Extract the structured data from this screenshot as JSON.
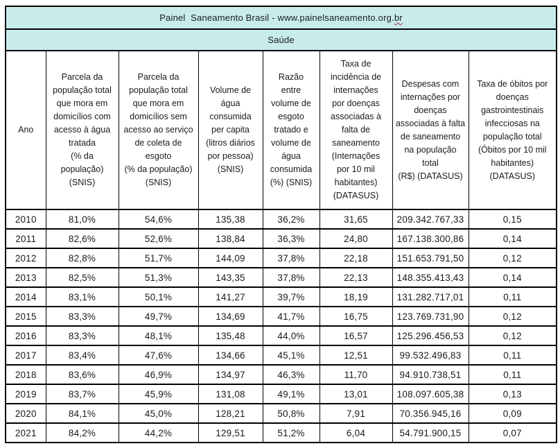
{
  "title": {
    "main": "Painel  Saneamento Brasil - www.painelsaneamento.org.",
    "spellcheck_suffix": "br"
  },
  "section_label": "Saúde",
  "colors": {
    "banner_bg": "#c8ecec",
    "border": "#000000",
    "text": "#1a1a1a",
    "spellcheck_underline": "#b03030"
  },
  "columns": [
    {
      "label": "Ano"
    },
    {
      "label": "Parcela da\npopulação total\nque mora em\ndomicílios com\nacesso à água\ntratada\n(% da\npopulação)\n(SNIS)"
    },
    {
      "label": "Parcela da\npopulação total\nque mora em\ndomicílios sem\nacesso ao serviço\nde coleta de\nesgoto\n(% da população)\n(SNIS)"
    },
    {
      "label": "Volume de\nágua\nconsumida\nper capita\n(litros diários\npor pessoa)\n(SNIS)"
    },
    {
      "label": "Razão\nentre\nvolume de\nesgoto\ntratado e\nvolume de\nágua\nconsumida\n(%) (SNIS)"
    },
    {
      "label": "Taxa de\nincidência de\ninternações\npor doenças\nassociadas à\nfalta de\nsaneamento\n(Internações\npor 10 mil\nhabitantes)\n(DATASUS)"
    },
    {
      "label": "Despesas com\ninternações por\ndoenças\nassociadas à falta\nde saneamento\nna população\ntotal\n(R$) (DATASUS)"
    },
    {
      "label": "Taxa de óbitos por\ndoenças\ngastrointestinais\ninfecciosas na\npopulação total\n(Óbitos por 10 mil\nhabitantes)\n(DATASUS)"
    }
  ],
  "rows": [
    [
      "2010",
      "81,0%",
      "54,6%",
      "135,38",
      "36,2%",
      "31,65",
      "209.342.767,33",
      "0,15"
    ],
    [
      "2011",
      "82,6%",
      "52,6%",
      "138,84",
      "36,3%",
      "24,80",
      "167.138.300,86",
      "0,14"
    ],
    [
      "2012",
      "82,8%",
      "51,7%",
      "144,09",
      "37,8%",
      "22,18",
      "151.653.791,50",
      "0,12"
    ],
    [
      "2013",
      "82,5%",
      "51,3%",
      "143,35",
      "37,8%",
      "22,13",
      "148.355.413,43",
      "0,14"
    ],
    [
      "2014",
      "83,1%",
      "50,1%",
      "141,27",
      "39,7%",
      "18,19",
      "131.282.717,01",
      "0,11"
    ],
    [
      "2015",
      "83,3%",
      "49,7%",
      "134,69",
      "41,7%",
      "16,75",
      "123.769.731,90",
      "0,12"
    ],
    [
      "2016",
      "83,3%",
      "48,1%",
      "135,48",
      "44,0%",
      "16,57",
      "125.296.456,53",
      "0,12"
    ],
    [
      "2017",
      "83,4%",
      "47,6%",
      "134,66",
      "45,1%",
      "12,51",
      "99.532.496,83",
      "0,11"
    ],
    [
      "2018",
      "83,6%",
      "46,9%",
      "134,97",
      "46,3%",
      "11,70",
      "94.910.738,51",
      "0,11"
    ],
    [
      "2019",
      "83,7%",
      "45,9%",
      "131,08",
      "49,1%",
      "13,01",
      "108.097.605,38",
      "0,13"
    ],
    [
      "2020",
      "84,1%",
      "45,0%",
      "128,21",
      "50,8%",
      "7,91",
      "70.356.945,16",
      "0,09"
    ],
    [
      "2021",
      "84,2%",
      "44,2%",
      "129,51",
      "51,2%",
      "6,04",
      "54.791.900,15",
      "0,07"
    ]
  ]
}
